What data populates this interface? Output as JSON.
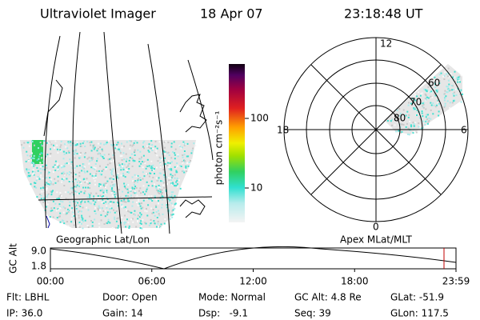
{
  "header": {
    "instrument": "Ultraviolet Imager",
    "date": "18 Apr 07",
    "time": "23:18:48 UT"
  },
  "colorbar": {
    "label": "photon cm⁻²s⁻¹",
    "ticks": [
      "100",
      "10"
    ]
  },
  "map_label": "Geographic Lat/Lon",
  "polar": {
    "label": "Apex MLat/MLT",
    "mlt_labels": [
      "12",
      "18",
      "6",
      "0"
    ],
    "lat_labels": [
      "60",
      "70",
      "80"
    ]
  },
  "altitude_plot": {
    "y_label": "GC Alt",
    "yticks": [
      "9.0",
      "1.8"
    ],
    "xticks": [
      "00:00",
      "06:00",
      "12:00",
      "18:00",
      "23:59"
    ]
  },
  "status": [
    [
      "Flt: LBHL",
      "Door: Open",
      "Mode: Normal",
      "GC Alt: 4.8 Re",
      "GLat: -51.9"
    ],
    [
      "IP: 36.0",
      "Gain: 14",
      "Dsp:   -9.1",
      "Seq: 39",
      "GLon: 117.5"
    ]
  ]
}
